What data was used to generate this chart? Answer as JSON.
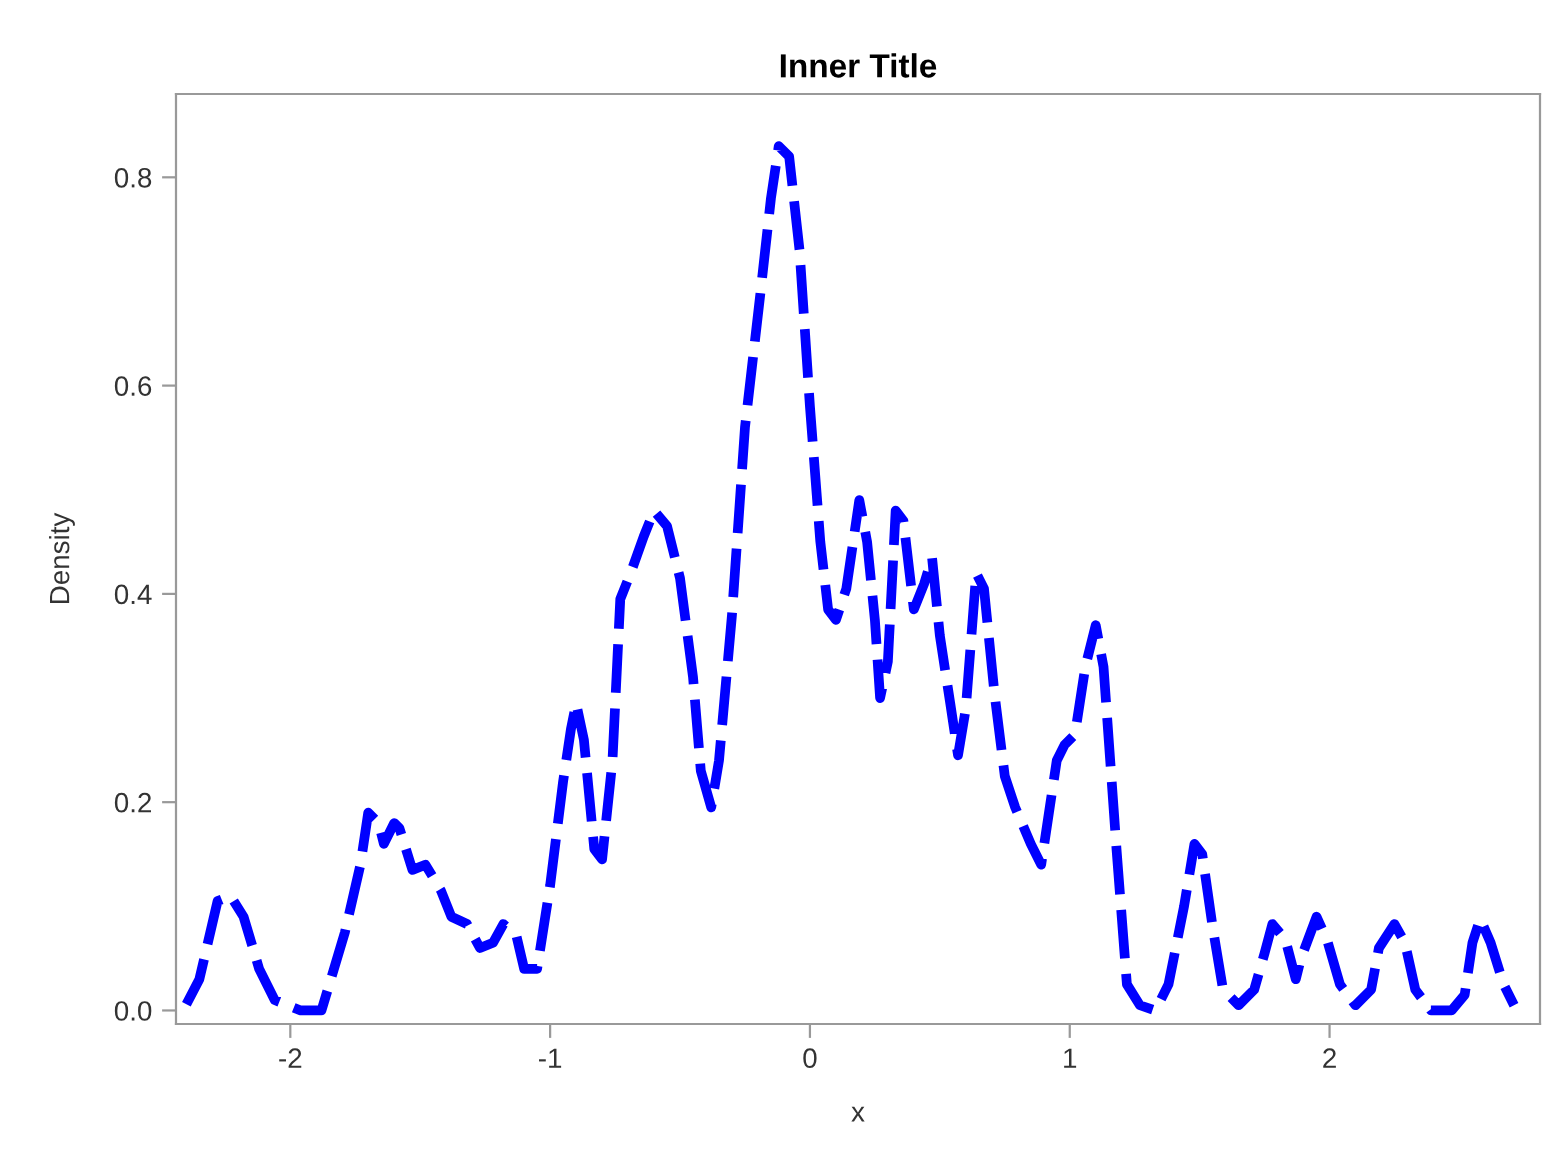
{
  "chart_data": {
    "type": "line",
    "title": "Inner Title",
    "xlabel": "x",
    "ylabel": "Density",
    "xlim": [
      -2.44,
      2.81
    ],
    "ylim": [
      -0.013,
      0.88
    ],
    "xticks": [
      -2,
      -1,
      0,
      1,
      2
    ],
    "yticks": [
      {
        "value": 0,
        "label": "0.0"
      },
      0.2,
      0.4,
      0.6,
      0.8
    ],
    "grid": false,
    "line_style": "dashed",
    "marker": "none",
    "series": [
      {
        "color": "#0000ff",
        "x": [
          -2.4,
          -2.35,
          -2.28,
          -2.23,
          -2.18,
          -2.12,
          -2.06,
          -1.96,
          -1.88,
          -1.85,
          -1.79,
          -1.73,
          -1.7,
          -1.66,
          -1.64,
          -1.6,
          -1.58,
          -1.53,
          -1.48,
          -1.42,
          -1.38,
          -1.32,
          -1.27,
          -1.22,
          -1.18,
          -1.13,
          -1.1,
          -1.05,
          -1.0,
          -0.95,
          -0.92,
          -0.9,
          -0.87,
          -0.83,
          -0.8,
          -0.76,
          -0.73,
          -0.69,
          -0.64,
          -0.6,
          -0.55,
          -0.5,
          -0.45,
          -0.42,
          -0.38,
          -0.35,
          -0.3,
          -0.25,
          -0.19,
          -0.15,
          -0.12,
          -0.08,
          -0.04,
          0.0,
          0.04,
          0.07,
          0.1,
          0.14,
          0.19,
          0.22,
          0.25,
          0.27,
          0.3,
          0.33,
          0.36,
          0.4,
          0.44,
          0.47,
          0.5,
          0.54,
          0.57,
          0.6,
          0.64,
          0.67,
          0.71,
          0.75,
          0.79,
          0.85,
          0.89,
          0.95,
          0.98,
          1.02,
          1.06,
          1.1,
          1.13,
          1.18,
          1.22,
          1.27,
          1.33,
          1.38,
          1.44,
          1.48,
          1.51,
          1.55,
          1.59,
          1.65,
          1.71,
          1.75,
          1.78,
          1.83,
          1.87,
          1.89,
          1.95,
          1.99,
          2.04,
          2.1,
          2.16,
          2.19,
          2.25,
          2.29,
          2.33,
          2.39,
          2.47,
          2.52,
          2.55,
          2.58,
          2.62,
          2.67,
          2.71
        ],
        "values": [
          0.006,
          0.03,
          0.105,
          0.11,
          0.09,
          0.04,
          0.01,
          0.0,
          0.0,
          0.025,
          0.075,
          0.14,
          0.19,
          0.18,
          0.16,
          0.18,
          0.175,
          0.135,
          0.14,
          0.115,
          0.09,
          0.083,
          0.06,
          0.065,
          0.083,
          0.072,
          0.04,
          0.04,
          0.12,
          0.22,
          0.27,
          0.295,
          0.26,
          0.155,
          0.145,
          0.24,
          0.395,
          0.42,
          0.455,
          0.48,
          0.465,
          0.415,
          0.32,
          0.23,
          0.195,
          0.24,
          0.38,
          0.56,
          0.69,
          0.78,
          0.83,
          0.82,
          0.73,
          0.58,
          0.45,
          0.385,
          0.375,
          0.405,
          0.49,
          0.45,
          0.375,
          0.3,
          0.335,
          0.48,
          0.47,
          0.385,
          0.41,
          0.435,
          0.36,
          0.295,
          0.245,
          0.29,
          0.42,
          0.405,
          0.305,
          0.225,
          0.195,
          0.16,
          0.14,
          0.24,
          0.255,
          0.265,
          0.33,
          0.37,
          0.33,
          0.155,
          0.025,
          0.005,
          0.0,
          0.025,
          0.1,
          0.16,
          0.15,
          0.08,
          0.02,
          0.005,
          0.02,
          0.055,
          0.083,
          0.068,
          0.03,
          0.05,
          0.09,
          0.068,
          0.025,
          0.005,
          0.02,
          0.06,
          0.083,
          0.065,
          0.02,
          0.0,
          0.0,
          0.015,
          0.065,
          0.088,
          0.065,
          0.025,
          0.005
        ]
      }
    ]
  }
}
